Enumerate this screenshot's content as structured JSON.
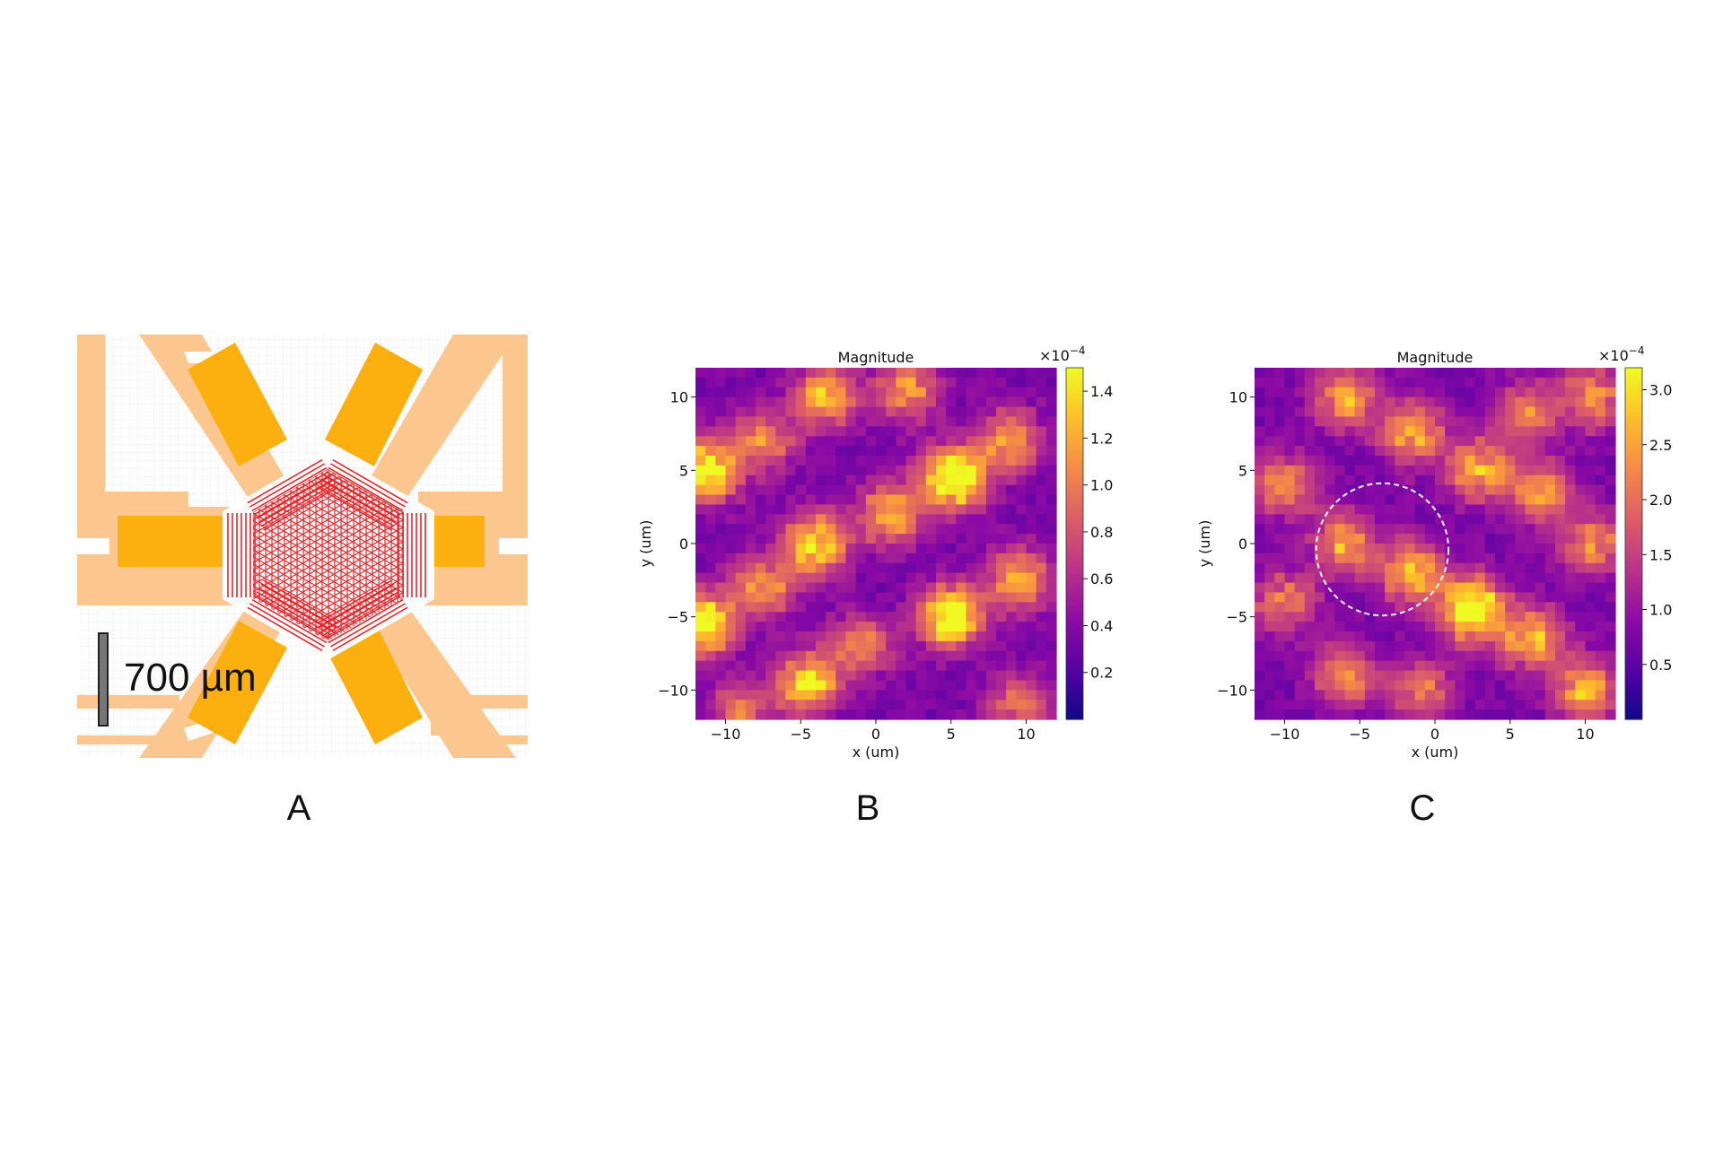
{
  "panels": {
    "a": {
      "label": "A",
      "scale_bar_text": "700 µm",
      "colors": {
        "trace": "#fcc78e",
        "pad": "#fbb00f",
        "finger": "#e8262a"
      }
    },
    "b": {
      "label": "B"
    },
    "c": {
      "label": "C"
    }
  },
  "chart_data": [
    {
      "panel": "B",
      "type": "heatmap",
      "title": "Magnitude",
      "xlabel": "x (um)",
      "ylabel": "y (um)",
      "xlim": [
        -12,
        12
      ],
      "ylim": [
        -12,
        12
      ],
      "xticks": [
        "−10",
        "−5",
        "0",
        "5",
        "10"
      ],
      "yticks": [
        "10",
        "5",
        "0",
        "−5",
        "−10"
      ],
      "colormap": "plasma",
      "colorbar": {
        "min": 0,
        "max": 1.5,
        "ticks": [
          "1.4",
          "1.2",
          "1.0",
          "0.8",
          "0.6",
          "0.4",
          "0.2"
        ],
        "multiplier": "×10",
        "exponent": "−4"
      },
      "peaks": [
        [
          -3.3,
          10,
          0.62
        ],
        [
          2,
          10.5,
          0.55
        ],
        [
          -7.5,
          7,
          0.5
        ],
        [
          9,
          7,
          0.55
        ],
        [
          -11.3,
          5,
          0.85
        ],
        [
          5.2,
          4.5,
          1.0
        ],
        [
          1,
          2,
          0.6
        ],
        [
          -4,
          0,
          0.75
        ],
        [
          -7.5,
          -3,
          0.55
        ],
        [
          9.5,
          -2.5,
          0.6
        ],
        [
          -11.5,
          -5.5,
          0.9
        ],
        [
          5,
          -5,
          0.9
        ],
        [
          -1,
          -7,
          0.45
        ],
        [
          -4.5,
          -9.5,
          0.7
        ],
        [
          9.5,
          -11,
          0.4
        ],
        [
          -9,
          -11.5,
          0.4
        ]
      ]
    },
    {
      "panel": "C",
      "type": "heatmap",
      "title": "Magnitude",
      "xlabel": "x (um)",
      "ylabel": "y (um)",
      "xlim": [
        -12,
        12
      ],
      "ylim": [
        -12,
        12
      ],
      "xticks": [
        "−10",
        "−5",
        "0",
        "5",
        "10"
      ],
      "yticks": [
        "10",
        "5",
        "0",
        "−5",
        "−10"
      ],
      "colormap": "plasma",
      "colorbar": {
        "min": 0,
        "max": 3.2,
        "ticks": [
          "3.0",
          "2.5",
          "2.0",
          "1.5",
          "1.0",
          "0.5"
        ],
        "multiplier": "×10",
        "exponent": "−4"
      },
      "peaks": [
        [
          -6,
          10,
          0.55
        ],
        [
          -1.5,
          7.5,
          0.6
        ],
        [
          3,
          5,
          0.6
        ],
        [
          7,
          3.5,
          0.55
        ],
        [
          10.5,
          10,
          0.5
        ],
        [
          -10,
          4,
          0.5
        ],
        [
          -6,
          0,
          0.55
        ],
        [
          -1.5,
          -2,
          0.65
        ],
        [
          2.5,
          -4.5,
          0.95
        ],
        [
          6.5,
          -6.5,
          0.65
        ],
        [
          -10,
          -4,
          0.45
        ],
        [
          -6,
          -9,
          0.5
        ],
        [
          -1,
          -10,
          0.45
        ],
        [
          10,
          -10,
          0.6
        ],
        [
          10.5,
          0,
          0.5
        ],
        [
          6,
          9,
          0.45
        ]
      ],
      "annotation": {
        "shape": "dashed-circle",
        "center": [
          -3.5,
          -0.4
        ],
        "radius": 4.4
      }
    }
  ]
}
